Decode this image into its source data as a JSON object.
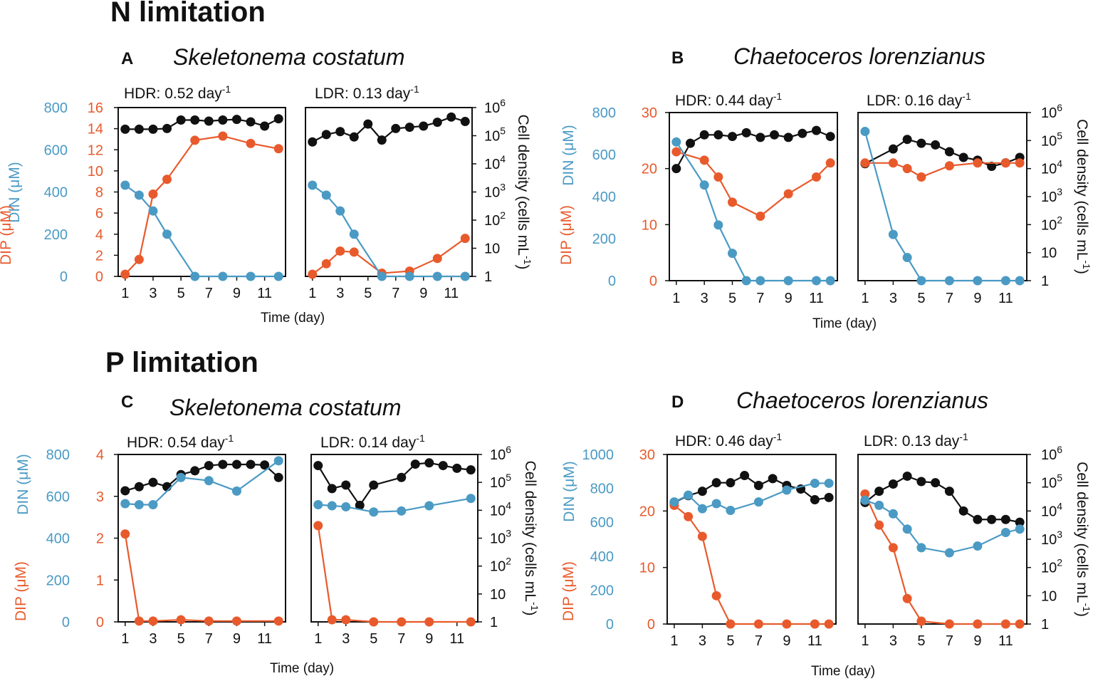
{
  "headings": {
    "n_limitation": "N limitation",
    "p_limitation": "P limitation"
  },
  "colors": {
    "din": "#4a9ac4",
    "dip": "#e85a2c",
    "cell": "#111111"
  },
  "labels": {
    "din_axis": "DIN (μM)",
    "dip_axis": "DIP (μM)",
    "cell_axis": "Cell density (cells mL",
    "cell_axis_exp": "-1",
    "cell_axis_close": ")",
    "x_axis": "Time (day)",
    "rate_unit": "day",
    "rate_exp": "-1",
    "cell_ticks": [
      {
        "base": "1",
        "exp": ""
      },
      {
        "base": "10",
        "exp": ""
      },
      {
        "base": "10",
        "exp": "2"
      },
      {
        "base": "10",
        "exp": "3"
      },
      {
        "base": "10",
        "exp": "4"
      },
      {
        "base": "10",
        "exp": "5"
      },
      {
        "base": "10",
        "exp": "6"
      }
    ]
  },
  "chart_data": [
    {
      "panel": "A",
      "type": "line",
      "species": "Skeletonema costatum",
      "din_ylim": [
        0,
        800
      ],
      "din_ticks": [
        0,
        200,
        400,
        600,
        800
      ],
      "dip_ylim": [
        0,
        16
      ],
      "dip_ticks": [
        0,
        2,
        4,
        6,
        8,
        10,
        12,
        14,
        16
      ],
      "cell_ylim_log10": [
        0,
        6
      ],
      "xlim": [
        0.5,
        12.5
      ],
      "x_ticks": [
        1,
        3,
        5,
        7,
        9,
        11
      ],
      "subplots": [
        {
          "label": "HDR:",
          "rate": "0.52",
          "series": [
            {
              "name": "Cell density",
              "x": [
                1,
                2,
                3,
                4,
                5,
                6,
                7,
                8,
                9,
                10,
                11,
                12
              ],
              "values": [
                170000.0,
                170000.0,
                170000.0,
                180000.0,
                360000.0,
                360000.0,
                330000.0,
                360000.0,
                380000.0,
                310000.0,
                220000.0,
                400000.0
              ]
            },
            {
              "name": "DIP",
              "x": [
                1,
                2,
                3,
                4,
                6,
                8,
                10,
                12
              ],
              "values": [
                0.2,
                1.6,
                7.8,
                9.2,
                12.9,
                13.3,
                12.6,
                12.1
              ]
            },
            {
              "name": "DIN",
              "x": [
                1,
                2,
                3,
                4,
                6,
                8,
                10,
                12
              ],
              "values": [
                432,
                385,
                310,
                200,
                0,
                0,
                0,
                0
              ]
            }
          ]
        },
        {
          "label": "LDR:",
          "rate": "0.13",
          "series": [
            {
              "name": "Cell density",
              "x": [
                1,
                2,
                3,
                4,
                5,
                6,
                7,
                8,
                9,
                10,
                11,
                12
              ],
              "values": [
                60000.0,
                110000.0,
                140000.0,
                90000.0,
                260000.0,
                70000.0,
                180000.0,
                200000.0,
                220000.0,
                300000.0,
                460000.0,
                320000.0
              ]
            },
            {
              "name": "DIP",
              "x": [
                1,
                2,
                3,
                4,
                6,
                8,
                10,
                12
              ],
              "values": [
                0.2,
                1.2,
                2.4,
                2.3,
                0.3,
                0.5,
                1.7,
                3.6
              ]
            },
            {
              "name": "DIN",
              "x": [
                1,
                2,
                3,
                4,
                6,
                8,
                10,
                12
              ],
              "values": [
                432,
                385,
                310,
                200,
                0,
                0,
                0,
                0
              ]
            }
          ]
        }
      ]
    },
    {
      "panel": "B",
      "type": "line",
      "species": "Chaetoceros lorenzianus",
      "din_ylim": [
        0,
        800
      ],
      "din_ticks": [
        0,
        200,
        400,
        600,
        800
      ],
      "dip_ylim": [
        0,
        30
      ],
      "dip_ticks": [
        0,
        10,
        20,
        30
      ],
      "cell_ylim_log10": [
        0,
        6
      ],
      "xlim": [
        0.5,
        12.5
      ],
      "x_ticks": [
        1,
        3,
        5,
        7,
        9,
        11
      ],
      "subplots": [
        {
          "label": "HDR:",
          "rate": "0.44",
          "series": [
            {
              "name": "Cell density",
              "x": [
                1,
                2,
                3,
                4,
                5,
                6,
                7,
                8,
                9,
                10,
                11,
                12
              ],
              "values": [
                10000.0,
                80000.0,
                160000.0,
                160000.0,
                140000.0,
                190000.0,
                130000.0,
                160000.0,
                130000.0,
                180000.0,
                230000.0,
                140000.0
              ]
            },
            {
              "name": "DIP",
              "x": [
                1,
                3,
                4,
                5,
                7,
                9,
                11,
                12
              ],
              "values": [
                23,
                21.5,
                18.5,
                14,
                11.5,
                15.5,
                18.5,
                21
              ]
            },
            {
              "name": "DIN",
              "x": [
                1,
                3,
                4,
                5,
                6,
                7,
                9,
                11,
                12
              ],
              "values": [
                660,
                455,
                265,
                130,
                0,
                0,
                0,
                0,
                0
              ]
            }
          ]
        },
        {
          "label": "LDR:",
          "rate": "0.16",
          "series": [
            {
              "name": "Cell density",
              "x": [
                1,
                3,
                4,
                5,
                6,
                7,
                8,
                9,
                10,
                11,
                12
              ],
              "values": [
                15000.0,
                50000.0,
                110000.0,
                80000.0,
                70000.0,
                40000.0,
                25000.0,
                20000.0,
                12000.0,
                16000.0,
                25000.0
              ]
            },
            {
              "name": "DIP",
              "x": [
                1,
                3,
                4,
                5,
                7,
                9,
                11,
                12
              ],
              "values": [
                21,
                21,
                20,
                18.5,
                20.5,
                21,
                21,
                21
              ]
            },
            {
              "name": "DIN",
              "x": [
                1,
                3,
                4,
                5,
                7,
                9,
                11,
                12
              ],
              "values": [
                710,
                220,
                110,
                0,
                0,
                0,
                0,
                0
              ]
            }
          ]
        }
      ]
    },
    {
      "panel": "C",
      "type": "line",
      "species": "Skeletonema costatum",
      "din_ylim": [
        0,
        800
      ],
      "din_ticks": [
        0,
        200,
        400,
        600,
        800
      ],
      "dip_ylim": [
        0,
        4
      ],
      "dip_ticks": [
        0,
        1,
        2,
        3,
        4
      ],
      "cell_ylim_log10": [
        0,
        6
      ],
      "xlim": [
        0.5,
        12.5
      ],
      "x_ticks": [
        1,
        3,
        5,
        7,
        9,
        11
      ],
      "subplots": [
        {
          "label": "HDR:",
          "rate": "0.54",
          "series": [
            {
              "name": "Cell density",
              "x": [
                1,
                2,
                3,
                4,
                5,
                6,
                7,
                8,
                9,
                10,
                11,
                12
              ],
              "values": [
                50000.0,
                70000.0,
                100000.0,
                70000.0,
                190000.0,
                260000.0,
                400000.0,
                440000.0,
                440000.0,
                440000.0,
                420000.0,
                150000.0
              ]
            },
            {
              "name": "DIP",
              "x": [
                1,
                2,
                3,
                5,
                7,
                9,
                12
              ],
              "values": [
                2.1,
                0.02,
                0.02,
                0.05,
                0.02,
                0.02,
                0.02
              ]
            },
            {
              "name": "DIN",
              "x": [
                1,
                2,
                3,
                5,
                7,
                9,
                12
              ],
              "values": [
                565,
                560,
                560,
                690,
                675,
                625,
                770
              ]
            }
          ]
        },
        {
          "label": "LDR:",
          "rate": "0.14",
          "series": [
            {
              "name": "Cell density",
              "x": [
                1,
                2,
                3,
                4,
                5,
                7,
                8,
                9,
                10,
                11,
                12
              ],
              "values": [
                400000.0,
                60000.0,
                80000.0,
                15000.0,
                80000.0,
                150000.0,
                450000.0,
                500000.0,
                400000.0,
                320000.0,
                280000.0
              ]
            },
            {
              "name": "DIP",
              "x": [
                1,
                2,
                3,
                5,
                7,
                9,
                12
              ],
              "values": [
                2.3,
                0.05,
                0.05,
                0,
                0,
                0,
                0
              ]
            },
            {
              "name": "DIN",
              "x": [
                1,
                2,
                3,
                5,
                7,
                9,
                12
              ],
              "values": [
                560,
                555,
                550,
                525,
                530,
                555,
                590
              ]
            }
          ]
        }
      ]
    },
    {
      "panel": "D",
      "type": "line",
      "species": "Chaetoceros lorenzianus",
      "din_ylim": [
        0,
        1000
      ],
      "din_ticks": [
        0,
        200,
        400,
        600,
        800,
        1000
      ],
      "dip_ylim": [
        0,
        30
      ],
      "dip_ticks": [
        0,
        10,
        20,
        30
      ],
      "cell_ylim_log10": [
        0,
        6
      ],
      "xlim": [
        0.5,
        12.5
      ],
      "x_ticks": [
        1,
        3,
        5,
        7,
        9,
        11
      ],
      "subplots": [
        {
          "label": "HDR:",
          "rate": "0.46",
          "series": [
            {
              "name": "Cell density",
              "x": [
                1,
                2,
                3,
                4,
                5,
                6,
                7,
                8,
                9,
                10,
                11,
                12
              ],
              "values": [
                20000.0,
                35000.0,
                50000.0,
                100000.0,
                100000.0,
                180000.0,
                80000.0,
                140000.0,
                80000.0,
                60000.0,
                25000.0,
                30000.0
              ]
            },
            {
              "name": "DIP",
              "x": [
                1,
                2,
                3,
                4,
                5,
                7,
                9,
                11,
                12
              ],
              "values": [
                21,
                19,
                15.5,
                5,
                0,
                0,
                0,
                0,
                0
              ]
            },
            {
              "name": "DIN",
              "x": [
                1,
                2,
                3,
                4,
                5,
                7,
                9,
                11,
                12
              ],
              "values": [
                720,
                760,
                680,
                710,
                670,
                720,
                790,
                830,
                830
              ]
            }
          ]
        },
        {
          "label": "LDR:",
          "rate": "0.13",
          "series": [
            {
              "name": "Cell density",
              "x": [
                1,
                2,
                3,
                4,
                5,
                6,
                7,
                8,
                9,
                10,
                11,
                12
              ],
              "values": [
                20000.0,
                50000.0,
                90000.0,
                170000.0,
                110000.0,
                100000.0,
                50000.0,
                10000.0,
                5000.0,
                5000.0,
                5000.0,
                4000.0
              ]
            },
            {
              "name": "DIP",
              "x": [
                1,
                2,
                3,
                4,
                5,
                7,
                9,
                11,
                12
              ],
              "values": [
                23,
                17.5,
                13.5,
                4.5,
                0.5,
                0,
                0,
                0,
                0
              ]
            },
            {
              "name": "DIN",
              "x": [
                1,
                2,
                3,
                4,
                5,
                7,
                9,
                11,
                12
              ],
              "values": [
                730,
                700,
                650,
                560,
                450,
                420,
                460,
                540,
                560
              ]
            }
          ]
        }
      ]
    }
  ]
}
